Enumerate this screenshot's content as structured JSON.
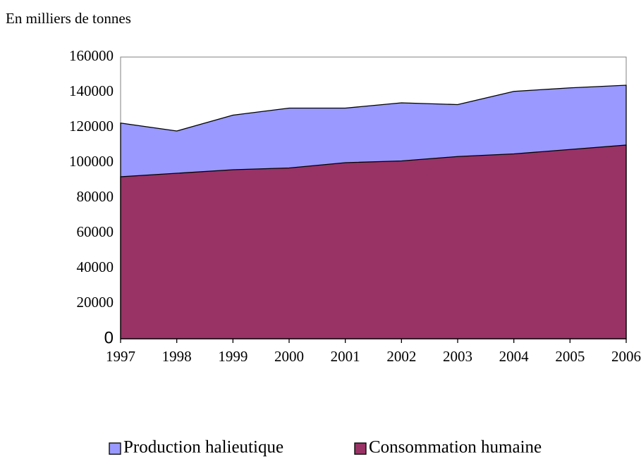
{
  "chart_data": {
    "type": "area",
    "subtitle": "En milliers de tonnes",
    "x": [
      1997,
      1998,
      1999,
      2000,
      2001,
      2002,
      2003,
      2004,
      2005,
      2006
    ],
    "xlim": [
      1997,
      2006
    ],
    "series": [
      {
        "name": "Production halieutique",
        "color": "#9999ff",
        "values": [
          122500,
          118000,
          127000,
          131000,
          131000,
          134000,
          133000,
          140500,
          142500,
          144000
        ]
      },
      {
        "name": "Consommation humaine",
        "color": "#993366",
        "values": [
          92000,
          94000,
          96000,
          97000,
          100000,
          101000,
          103500,
          105000,
          107500,
          110000
        ]
      }
    ],
    "ylim": [
      0,
      160000
    ],
    "yticks": [
      0,
      20000,
      40000,
      60000,
      80000,
      100000,
      120000,
      140000,
      160000
    ],
    "grid": false,
    "legend": "bottom"
  }
}
